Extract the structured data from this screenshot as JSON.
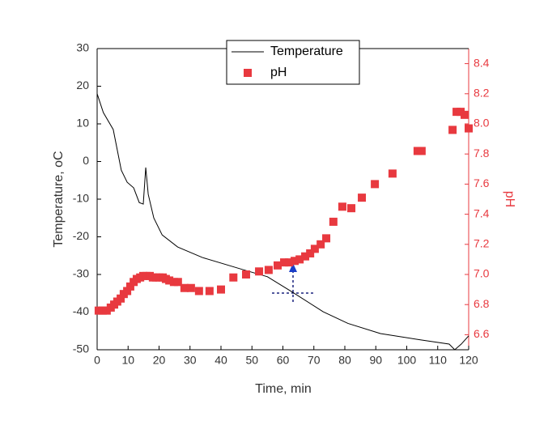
{
  "chart_data": {
    "type": "line-scatter",
    "x_label": "Time, min",
    "y_label": "Temperature, oC",
    "y2_label": "pH",
    "xlim": [
      0,
      120
    ],
    "xticks": [
      0,
      10,
      20,
      30,
      40,
      50,
      60,
      70,
      80,
      90,
      100,
      110,
      120
    ],
    "ylim": [
      -50,
      30
    ],
    "yticks": [
      -50,
      -40,
      -30,
      -20,
      -10,
      0,
      10,
      20,
      30
    ],
    "y2lim": [
      6.5,
      8.5
    ],
    "y2ticks": [
      6.6,
      6.8,
      7.0,
      7.2,
      7.4,
      7.6,
      7.8,
      8.0,
      8.2,
      8.4
    ],
    "legend": "top-center",
    "series": [
      {
        "name": "Temperature",
        "color": "#000000",
        "kind": "line",
        "x": [
          0,
          2,
          5.2,
          7.8,
          9.7,
          11.8,
          13.6,
          14.9,
          15.7,
          16.5,
          18.3,
          21,
          26,
          34,
          47,
          55,
          62.7,
          73,
          81,
          91.5,
          104.6,
          113.7,
          115.5,
          117.6,
          120
        ],
        "values": [
          18,
          13,
          8.5,
          -2.3,
          -5.5,
          -7,
          -10.9,
          -11.3,
          -1.6,
          -8.7,
          -15,
          -19.5,
          -22.7,
          -25.5,
          -28.7,
          -30.6,
          -34.5,
          -39.9,
          -43,
          -45.7,
          -47.4,
          -48.5,
          -50,
          -48.5,
          -46.3
        ]
      },
      {
        "name": "pH",
        "color": "#e8393f",
        "kind": "scatter",
        "axis": "y2",
        "x": [
          0.5,
          1.8,
          3.1,
          4.4,
          5.5,
          6.5,
          7.6,
          8.6,
          9.7,
          10.7,
          11.8,
          12.8,
          13.9,
          14.9,
          15.9,
          17,
          18,
          19.1,
          20.1,
          21.2,
          22.2,
          23.3,
          24.8,
          26.1,
          28.2,
          30.3,
          32.9,
          36.3,
          40,
          44,
          48.1,
          52.3,
          55.4,
          58.3,
          60.4,
          62,
          63.8,
          65.4,
          67.2,
          68.8,
          70.3,
          72.2,
          74,
          76.3,
          79.2,
          82.1,
          85.5,
          89.7,
          95.4,
          103.5,
          104.8,
          114.8,
          116.1,
          117.4,
          118.7,
          120
        ],
        "values": [
          6.76,
          6.76,
          6.76,
          6.78,
          6.8,
          6.82,
          6.84,
          6.87,
          6.89,
          6.92,
          6.95,
          6.97,
          6.98,
          6.99,
          6.99,
          6.99,
          6.98,
          6.98,
          6.98,
          6.98,
          6.97,
          6.96,
          6.95,
          6.95,
          6.91,
          6.91,
          6.89,
          6.89,
          6.9,
          6.98,
          7.0,
          7.02,
          7.03,
          7.06,
          7.08,
          7.08,
          7.09,
          7.1,
          7.12,
          7.14,
          7.17,
          7.2,
          7.24,
          7.35,
          7.45,
          7.44,
          7.51,
          7.6,
          7.67,
          7.82,
          7.82,
          7.96,
          8.08,
          8.08,
          8.06,
          7.97
        ]
      }
    ]
  }
}
